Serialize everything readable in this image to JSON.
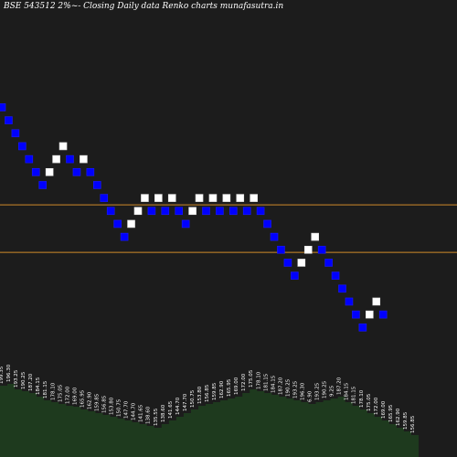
{
  "chart_data": {
    "type": "renko",
    "title": "BSE 543512  2%~-  Closing Daily data  Renko  charts munafasutra.in",
    "colors": {
      "background": "#1c1c1c",
      "up_brick": "#ffffff",
      "down_brick": "#0000ff",
      "brick_border": "#1a1aff",
      "hline": "#d08a2a",
      "volume_fill": "#1e3a1e",
      "volume_label": "#ffffff"
    },
    "price_range": [
      180,
      216
    ],
    "horizontal_lines": [
      196.5,
      191.0
    ],
    "bricks": [
      {
        "d": "down",
        "price": 207.8
      },
      {
        "d": "down",
        "price": 206.3
      },
      {
        "d": "down",
        "price": 204.8
      },
      {
        "d": "down",
        "price": 203.3
      },
      {
        "d": "down",
        "price": 201.8
      },
      {
        "d": "down",
        "price": 200.3
      },
      {
        "d": "down",
        "price": 198.8
      },
      {
        "d": "up",
        "price": 200.3
      },
      {
        "d": "up",
        "price": 201.8
      },
      {
        "d": "up",
        "price": 203.3
      },
      {
        "d": "down",
        "price": 201.8
      },
      {
        "d": "down",
        "price": 200.3
      },
      {
        "d": "up",
        "price": 201.8
      },
      {
        "d": "down",
        "price": 200.3
      },
      {
        "d": "down",
        "price": 198.8
      },
      {
        "d": "down",
        "price": 197.3
      },
      {
        "d": "down",
        "price": 195.8
      },
      {
        "d": "down",
        "price": 194.3
      },
      {
        "d": "down",
        "price": 192.8
      },
      {
        "d": "up",
        "price": 194.3
      },
      {
        "d": "up",
        "price": 195.8
      },
      {
        "d": "up",
        "price": 197.3
      },
      {
        "d": "down",
        "price": 195.8
      },
      {
        "d": "up",
        "price": 197.3
      },
      {
        "d": "down",
        "price": 195.8
      },
      {
        "d": "up",
        "price": 197.3
      },
      {
        "d": "down",
        "price": 195.8
      },
      {
        "d": "down",
        "price": 194.3
      },
      {
        "d": "up",
        "price": 195.8
      },
      {
        "d": "up",
        "price": 197.3
      },
      {
        "d": "down",
        "price": 195.8
      },
      {
        "d": "up",
        "price": 197.3
      },
      {
        "d": "down",
        "price": 195.8
      },
      {
        "d": "up",
        "price": 197.3
      },
      {
        "d": "down",
        "price": 195.8
      },
      {
        "d": "up",
        "price": 197.3
      },
      {
        "d": "down",
        "price": 195.8
      },
      {
        "d": "up",
        "price": 197.3
      },
      {
        "d": "down",
        "price": 195.8
      },
      {
        "d": "down",
        "price": 194.3
      },
      {
        "d": "down",
        "price": 192.8
      },
      {
        "d": "down",
        "price": 191.3
      },
      {
        "d": "down",
        "price": 189.8
      },
      {
        "d": "down",
        "price": 188.3
      },
      {
        "d": "up",
        "price": 189.8
      },
      {
        "d": "up",
        "price": 191.3
      },
      {
        "d": "up",
        "price": 192.8
      },
      {
        "d": "down",
        "price": 191.3
      },
      {
        "d": "down",
        "price": 189.8
      },
      {
        "d": "down",
        "price": 188.3
      },
      {
        "d": "down",
        "price": 186.8
      },
      {
        "d": "down",
        "price": 185.3
      },
      {
        "d": "down",
        "price": 183.8
      },
      {
        "d": "down",
        "price": 182.3
      },
      {
        "d": "up",
        "price": 183.8
      },
      {
        "d": "up",
        "price": 185.3
      },
      {
        "d": "down",
        "price": 183.8
      }
    ],
    "volume": {
      "max": 100,
      "values": [
        78,
        80,
        74,
        72,
        70,
        66,
        62,
        60,
        58,
        56,
        55,
        52,
        50,
        48,
        46,
        44,
        42,
        40,
        38,
        36,
        34,
        32,
        36,
        40,
        44,
        48,
        52,
        56,
        58,
        60,
        62,
        64,
        66,
        70,
        74,
        72,
        70,
        68,
        66,
        64,
        62,
        60,
        58,
        60,
        62,
        64,
        66,
        60,
        56,
        52,
        48,
        44,
        40,
        36,
        32,
        28,
        24
      ],
      "labels": [
        "199.35",
        "196.30",
        "193.25",
        "190.25",
        "187.20",
        "184.15",
        "181.15",
        "178.10",
        "175.05",
        "172.00",
        "169.00",
        "165.95",
        "162.90",
        "159.85",
        "156.85",
        "153.80",
        "150.75",
        "147.70",
        "144.70",
        "141.65",
        "138.60",
        "135.55",
        "138.60",
        "141.65",
        "144.70",
        "147.70",
        "150.75",
        "153.80",
        "156.85",
        "159.85",
        "162.90",
        "165.95",
        "169.00",
        "172.00",
        "175.05",
        "178.10",
        "181.15",
        "184.15",
        "187.20",
        "190.25",
        "193.25",
        "196.30",
        "6.90",
        "193.25",
        "190.25",
        "9.25",
        "187.20",
        "184.15",
        "181.15",
        "178.10",
        "175.05",
        "172.00",
        "169.00",
        "165.95",
        "162.90",
        "159.85",
        "156.85"
      ]
    }
  }
}
